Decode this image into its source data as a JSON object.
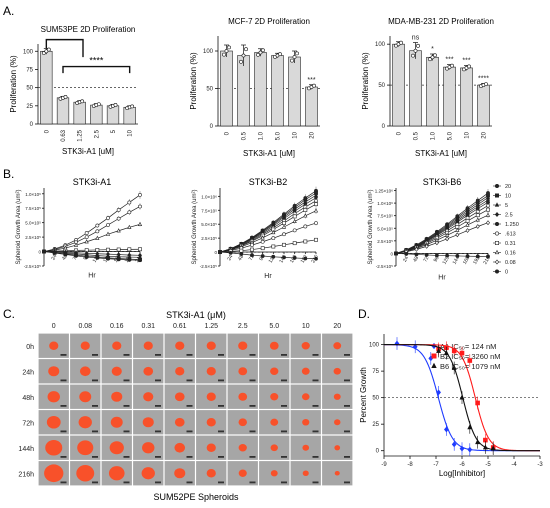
{
  "panel_letters": [
    "A.",
    "B.",
    "C.",
    "D."
  ],
  "chart_data": [
    {
      "type": "bar",
      "panel": "A",
      "title": "SUM53PE 2D Proliferation",
      "xlabel": "STK3i-A1 [uM]",
      "ylabel": "Proliferation (%)",
      "categories": [
        "0",
        "0.63",
        "1.25",
        "2.5",
        "5",
        "10"
      ],
      "values": [
        100,
        36,
        30,
        26,
        25,
        23
      ],
      "errors": [
        4,
        2,
        2,
        2,
        2,
        2
      ],
      "ylim": [
        0,
        110
      ],
      "yticks": [
        "0",
        "25",
        "50",
        "75",
        "100"
      ],
      "reference_line": 50,
      "significance": [
        "",
        "",
        "",
        "",
        "",
        ""
      ],
      "bracket_label": "****"
    },
    {
      "type": "bar",
      "panel": "A",
      "title": "MCF-7 2D Proliferation",
      "xlabel": "STK3i-A1 [uM]",
      "ylabel": "Proliferation (%)",
      "categories": [
        "0",
        "0.5",
        "1.0",
        "5.0",
        "10",
        "20"
      ],
      "values": [
        100,
        94,
        98,
        94,
        92,
        52
      ],
      "errors": [
        8,
        14,
        5,
        3,
        8,
        3
      ],
      "ylim": [
        0,
        120
      ],
      "yticks": [
        "0",
        "50",
        "100"
      ],
      "reference_line": 50,
      "significance": [
        "",
        "",
        "",
        "",
        "",
        "***"
      ]
    },
    {
      "type": "bar",
      "panel": "A",
      "title": "MDA-MB-231 2D Proliferation",
      "xlabel": "STK3i-A1 [uM]",
      "ylabel": "Proliferation (%)",
      "categories": [
        "0",
        "0.5",
        "1.0",
        "5.0",
        "10",
        "20"
      ],
      "values": [
        100,
        92,
        84,
        72,
        71,
        50
      ],
      "errors": [
        3,
        10,
        4,
        3,
        3,
        2
      ],
      "ylim": [
        0,
        110
      ],
      "yticks": [
        "0",
        "50",
        "100"
      ],
      "reference_line": 50,
      "significance": [
        "",
        "ns",
        "*",
        "***",
        "***",
        "****"
      ]
    },
    {
      "type": "line",
      "panel": "B",
      "title": "STK3i-A1",
      "xlabel": "Hr",
      "ylabel": "Spheroid Growth  Area (um²)",
      "x": [
        0,
        24,
        48,
        72,
        96,
        120,
        144,
        168,
        192,
        216
      ],
      "xticks": [
        "24",
        "48",
        "72",
        "96",
        "120",
        "144",
        "168",
        "192",
        "216"
      ],
      "yticks": [
        "-2.5×10⁵",
        "0",
        "2.5×10⁵",
        "5.0×10⁵",
        "7.5×10⁵",
        "1.0×10⁶"
      ],
      "ylim": [
        -250000,
        1100000
      ],
      "series": [
        {
          "values": [
            0,
            45000,
            110000,
            200000,
            320000,
            450000,
            580000,
            720000,
            850000,
            980000
          ],
          "marker": "open-circle"
        },
        {
          "values": [
            0,
            35000,
            90000,
            160000,
            250000,
            350000,
            460000,
            570000,
            680000,
            780000
          ],
          "marker": "open-circle"
        },
        {
          "values": [
            0,
            25000,
            60000,
            110000,
            170000,
            230000,
            300000,
            360000,
            420000,
            470000
          ],
          "marker": "open-triangle"
        },
        {
          "values": [
            0,
            8000,
            15000,
            20000,
            24000,
            28000,
            32000,
            35000,
            38000,
            40000
          ],
          "marker": "open-square"
        },
        {
          "values": [
            0,
            0,
            -10000,
            -20000,
            -30000,
            -38000,
            -45000,
            -52000,
            -60000,
            -65000
          ],
          "marker": "filled-diamond"
        },
        {
          "values": [
            0,
            -10000,
            -25000,
            -40000,
            -55000,
            -70000,
            -80000,
            -90000,
            -95000,
            -100000
          ],
          "marker": "filled-triangle"
        },
        {
          "values": [
            0,
            -20000,
            -40000,
            -60000,
            -80000,
            -95000,
            -110000,
            -120000,
            -130000,
            -140000
          ],
          "marker": "filled-square"
        },
        {
          "values": [
            0,
            -25000,
            -50000,
            -75000,
            -95000,
            -110000,
            -125000,
            -135000,
            -145000,
            -150000
          ],
          "marker": "filled-circle"
        }
      ]
    },
    {
      "type": "line",
      "panel": "B",
      "title": "STK3i-B2",
      "xlabel": "Hr",
      "ylabel": "Spheroid Growth  Area (um²)",
      "x": [
        0,
        24,
        48,
        72,
        96,
        120,
        144,
        168,
        192,
        216
      ],
      "xticks": [
        "24",
        "48",
        "72",
        "96",
        "120",
        "144",
        "168",
        "192",
        "216"
      ],
      "yticks": [
        "-2.5×10⁵",
        "0",
        "2.5×10⁵",
        "5.0×10⁵",
        "7.5×10⁵",
        "1.0×10⁶"
      ],
      "ylim": [
        -250000,
        1150000
      ],
      "series": [
        {
          "values": [
            0,
            60000,
            150000,
            260000,
            390000,
            530000,
            680000,
            830000,
            970000,
            1100000
          ],
          "marker": "filled-circle"
        },
        {
          "values": [
            0,
            58000,
            145000,
            250000,
            375000,
            510000,
            655000,
            800000,
            940000,
            1060000
          ],
          "marker": "filled-square"
        },
        {
          "values": [
            0,
            55000,
            138000,
            240000,
            360000,
            490000,
            630000,
            770000,
            900000,
            1020000
          ],
          "marker": "filled-triangle"
        },
        {
          "values": [
            0,
            52000,
            130000,
            228000,
            342000,
            466000,
            600000,
            735000,
            860000,
            975000
          ],
          "marker": "filled-diamond"
        },
        {
          "values": [
            0,
            48000,
            120000,
            210000,
            318000,
            435000,
            560000,
            690000,
            810000,
            920000
          ],
          "marker": "open-circle"
        },
        {
          "values": [
            0,
            45000,
            110000,
            195000,
            295000,
            405000,
            520000,
            640000,
            755000,
            860000
          ],
          "marker": "open-square"
        },
        {
          "values": [
            0,
            40000,
            95000,
            170000,
            255000,
            350000,
            450000,
            550000,
            650000,
            740000
          ],
          "marker": "open-triangle"
        },
        {
          "values": [
            0,
            30000,
            70000,
            125000,
            185000,
            250000,
            320000,
            390000,
            460000,
            520000
          ],
          "marker": "open-circle"
        },
        {
          "values": [
            0,
            12000,
            25000,
            45000,
            70000,
            100000,
            130000,
            160000,
            190000,
            220000
          ],
          "marker": "open-square"
        },
        {
          "values": [
            0,
            -15000,
            -35000,
            -55000,
            -70000,
            -85000,
            -95000,
            -105000,
            -115000,
            -120000
          ],
          "marker": "filled-circle"
        }
      ]
    },
    {
      "type": "line",
      "panel": "B",
      "title": "STK3i-B6",
      "xlabel": "Hr",
      "ylabel": "Spheroid Growth  Area (um²)",
      "x": [
        0,
        24,
        48,
        72,
        96,
        120,
        144,
        168,
        192,
        216
      ],
      "xticks": [
        "24",
        "48",
        "72",
        "96",
        "120",
        "144",
        "168",
        "192",
        "216"
      ],
      "yticks": [
        "-2.5×10⁵",
        "0",
        "2.5×10⁵",
        "5.0×10⁵",
        "7.5×10⁵",
        "1.0×10⁶",
        "1.25×10⁶"
      ],
      "ylim": [
        -250000,
        1300000
      ],
      "series": [
        {
          "name": "20",
          "values": [
            0,
            70000,
            170000,
            290000,
            430000,
            580000,
            740000,
            900000,
            1050000,
            1200000
          ],
          "marker": "filled-circle"
        },
        {
          "name": "10",
          "values": [
            0,
            66000,
            160000,
            275000,
            410000,
            555000,
            710000,
            865000,
            1010000,
            1150000
          ],
          "marker": "filled-square"
        },
        {
          "name": "5",
          "values": [
            0,
            62000,
            150000,
            262000,
            392000,
            530000,
            680000,
            830000,
            970000,
            1110000
          ],
          "marker": "filled-triangle"
        },
        {
          "name": "2.5",
          "values": [
            0,
            58000,
            142000,
            250000,
            375000,
            508000,
            650000,
            795000,
            930000,
            1060000
          ],
          "marker": "filled-diamond"
        },
        {
          "name": "1.250",
          "values": [
            0,
            55000,
            135000,
            238000,
            358000,
            485000,
            620000,
            760000,
            890000,
            1015000
          ],
          "marker": "filled-circle"
        },
        {
          "name": ".613",
          "values": [
            0,
            50000,
            125000,
            220000,
            330000,
            450000,
            575000,
            705000,
            830000,
            950000
          ],
          "marker": "open-circle"
        },
        {
          "name": "0.31",
          "values": [
            0,
            46000,
            115000,
            200000,
            300000,
            410000,
            525000,
            645000,
            760000,
            870000
          ],
          "marker": "open-square"
        },
        {
          "name": "0.16",
          "values": [
            0,
            40000,
            100000,
            175000,
            262000,
            360000,
            460000,
            565000,
            665000,
            760000
          ],
          "marker": "open-triangle"
        },
        {
          "name": "0.08",
          "values": [
            0,
            32000,
            80000,
            140000,
            210000,
            290000,
            370000,
            455000,
            535000,
            610000
          ],
          "marker": "open-diamond"
        },
        {
          "name": "0",
          "values": [
            0,
            -10000,
            -20000,
            -30000,
            -40000,
            -45000,
            -50000,
            -55000,
            -58000,
            -60000
          ],
          "marker": "filled-circle"
        }
      ]
    },
    {
      "type": "line",
      "panel": "D",
      "title": "",
      "xlabel": "Log[Inhibitor]",
      "ylabel": "Percent Growth",
      "xlim": [
        -9,
        -3
      ],
      "ylim": [
        -5,
        110
      ],
      "xticks": [
        "-9",
        "-8",
        "-7",
        "-6",
        "-5",
        "-4",
        "-3"
      ],
      "yticks": [
        "0",
        "25",
        "50",
        "75",
        "100"
      ],
      "reference_line": 50,
      "series": [
        {
          "name": "A1 IC₅₀= 124 nM",
          "ic50_log": -6.91,
          "hill": 1.6,
          "color": "#1f3cff",
          "x": [
            -8.5,
            -7.8,
            -7.2,
            -6.9,
            -6.6,
            -6.3,
            -6.0,
            -5.7
          ],
          "values": [
            101,
            98,
            87,
            55,
            20,
            6,
            2,
            1
          ]
        },
        {
          "name": "B2 IC₅₀= 3260 nM",
          "ic50_log": -5.49,
          "hill": 1.7,
          "color": "#ff1a1a",
          "x": [
            -6.9,
            -6.6,
            -6.3,
            -6.0,
            -5.7,
            -5.4,
            -5.1,
            -4.8
          ],
          "values": [
            96,
            97,
            94,
            92,
            85,
            45,
            10,
            3
          ]
        },
        {
          "name": "B6 IC₅₀= 1079 nM",
          "ic50_log": -5.97,
          "hill": 1.7,
          "color": "#111111",
          "x": [
            -6.9,
            -6.6,
            -6.3,
            -6.0,
            -5.7,
            -5.4,
            -5.1,
            -4.8
          ],
          "values": [
            94,
            92,
            78,
            50,
            22,
            8,
            3,
            2
          ]
        }
      ]
    }
  ],
  "panel_c": {
    "header": "STK3i-A1 (μM)",
    "concentrations": [
      "0",
      "0.08",
      "0.16",
      "0.31",
      "0.61",
      "1.25",
      "2.5",
      "5.0",
      "10",
      "20"
    ],
    "timepoints": [
      "0h",
      "24h",
      "48h",
      "72h",
      "144h",
      "216h"
    ],
    "spheroid_scale": [
      [
        1.0,
        1.0,
        1.0,
        1.0,
        1.0,
        1.0,
        1.0,
        0.95,
        0.9,
        0.85
      ],
      [
        1.2,
        1.15,
        1.1,
        1.05,
        1.0,
        1.0,
        0.95,
        0.9,
        0.85,
        0.8
      ],
      [
        1.35,
        1.3,
        1.2,
        1.1,
        1.05,
        1.0,
        0.95,
        0.88,
        0.82,
        0.75
      ],
      [
        1.5,
        1.45,
        1.3,
        1.2,
        1.05,
        1.0,
        0.92,
        0.85,
        0.78,
        0.7
      ],
      [
        1.85,
        1.75,
        1.55,
        1.35,
        1.15,
        1.0,
        0.9,
        0.8,
        0.72,
        0.62
      ],
      [
        2.1,
        1.95,
        1.7,
        1.45,
        1.2,
        1.0,
        0.88,
        0.75,
        0.66,
        0.55
      ]
    ],
    "footer": "SUM52PE Spheroids",
    "colors": {
      "spheroid": "#ff4a1f",
      "background": "#a6a6a6"
    }
  }
}
